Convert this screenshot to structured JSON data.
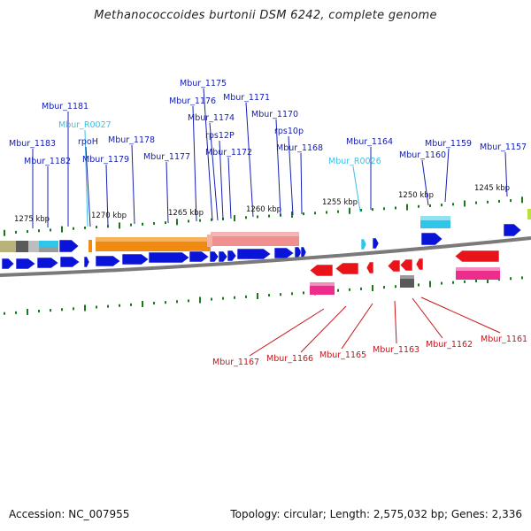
{
  "title": "Methanococcoides burtonii DSM 6242, complete genome",
  "footer": {
    "accession": "Accession: NC_007955",
    "summary": "Topology: circular; Length: 2,575,032 bp; Genes: 2,336"
  },
  "colors": {
    "forward_cds": "#0a14d8",
    "reverse_cds": "#e8141a",
    "forward_rna": "#2fc6e8",
    "reverse_rna": "#ec2d8c",
    "forward_label": "#1420b4",
    "rna_label": "#3cc0e6",
    "reverse_label": "#c8141a",
    "tick": "#1a7a1a",
    "backbone": "#7a7a7a",
    "orange_feature": "#f08a10",
    "salmon_feature": "#ef8f8f"
  },
  "scale_labels": [
    "1275 kbp",
    "1270 kbp",
    "1265 kbp",
    "1260 kbp",
    "1255 kbp",
    "1250 kbp",
    "1245 kbp"
  ],
  "forward_labels": [
    "Mbur_1183",
    "Mbur_1182",
    "Mbur_1181",
    "Mbur_R0027",
    "rpoH",
    "Mbur_1179",
    "Mbur_1178",
    "Mbur_1177",
    "Mbur_1176",
    "Mbur_1175",
    "Mbur_1174",
    "rps12P",
    "Mbur_1172",
    "Mbur_1171",
    "Mbur_1170",
    "rps10p",
    "Mbur_1168",
    "Mbur_R0026",
    "Mbur_1164",
    "Mbur_1160",
    "Mbur_1159",
    "Mbur_1157"
  ],
  "reverse_labels": [
    "Mbur_1167",
    "Mbur_1166",
    "Mbur_1165",
    "Mbur_1163",
    "Mbur_1162",
    "Mbur_1161"
  ]
}
